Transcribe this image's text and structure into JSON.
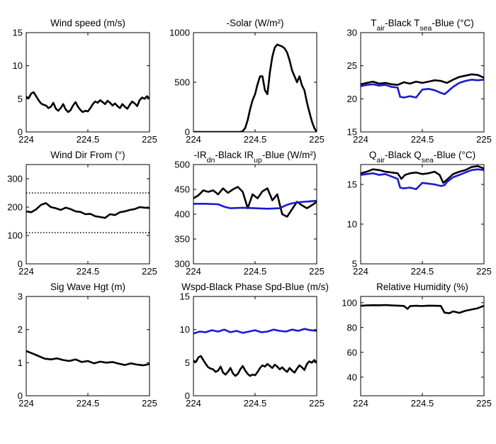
{
  "colors": {
    "black": "#000000",
    "blue": "#1a1ad0",
    "axis": "#000000"
  },
  "chart_data": [
    {
      "type": "line",
      "title": "Wind speed (m/s)",
      "xlim": [
        224,
        225
      ],
      "ylim": [
        0,
        15
      ],
      "xticks": [
        224,
        224.5,
        225
      ],
      "xtick_labels": [
        "224",
        "224.5",
        "225"
      ],
      "yticks": [
        0,
        5,
        10,
        15
      ],
      "ytick_labels": [
        "0",
        "5",
        "10",
        "15"
      ],
      "series": [
        {
          "color": "black",
          "x": [
            224,
            224.02,
            224.04,
            224.06,
            224.08,
            224.1,
            224.12,
            224.14,
            224.16,
            224.18,
            224.2,
            224.22,
            224.24,
            224.26,
            224.28,
            224.3,
            224.32,
            224.34,
            224.36,
            224.38,
            224.4,
            224.42,
            224.44,
            224.46,
            224.48,
            224.5,
            224.52,
            224.54,
            224.56,
            224.58,
            224.6,
            224.62,
            224.64,
            224.66,
            224.68,
            224.7,
            224.72,
            224.74,
            224.76,
            224.78,
            224.8,
            224.82,
            224.84,
            224.86,
            224.88,
            224.9,
            224.92,
            224.94,
            224.96,
            224.98,
            225
          ],
          "y": [
            5.3,
            5.1,
            5.8,
            6.0,
            5.4,
            4.8,
            4.3,
            4.1,
            4.0,
            3.6,
            3.8,
            4.4,
            3.5,
            3.2,
            3.6,
            4.2,
            3.4,
            3.0,
            3.3,
            4.0,
            4.5,
            3.8,
            3.3,
            3.0,
            3.2,
            3.1,
            3.6,
            4.2,
            4.6,
            4.4,
            4.8,
            4.5,
            4.2,
            4.7,
            4.4,
            4.0,
            4.3,
            3.9,
            3.6,
            4.2,
            3.8,
            3.5,
            4.1,
            4.6,
            4.3,
            3.9,
            4.8,
            5.2,
            5.0,
            5.4,
            5.0
          ]
        }
      ]
    },
    {
      "type": "line",
      "title": "-Solar (W/m²)",
      "xlim": [
        224,
        225
      ],
      "ylim": [
        0,
        1000
      ],
      "xticks": [
        224,
        224.5,
        225
      ],
      "xtick_labels": [
        "224",
        "224.5",
        "225"
      ],
      "yticks": [
        0,
        500,
        1000
      ],
      "ytick_labels": [
        "0",
        "500",
        "1000"
      ],
      "series": [
        {
          "color": "black",
          "x": [
            224,
            224.38,
            224.4,
            224.42,
            224.44,
            224.46,
            224.48,
            224.5,
            224.52,
            224.54,
            224.56,
            224.58,
            224.6,
            224.62,
            224.64,
            224.66,
            224.68,
            224.7,
            224.72,
            224.74,
            224.76,
            224.78,
            224.8,
            224.82,
            224.84,
            224.86,
            224.88,
            224.9,
            224.92,
            224.94,
            224.96,
            224.98,
            225
          ],
          "y": [
            0,
            0,
            8,
            40,
            120,
            230,
            320,
            380,
            480,
            560,
            560,
            420,
            380,
            600,
            760,
            850,
            880,
            870,
            860,
            840,
            800,
            720,
            620,
            560,
            500,
            560,
            470,
            420,
            300,
            200,
            110,
            40,
            0
          ]
        }
      ]
    },
    {
      "type": "line",
      "title": "T_air-Black T_sea-Blue (°C)",
      "xlim": [
        224,
        225
      ],
      "ylim": [
        15,
        30
      ],
      "xticks": [
        224,
        224.5,
        225
      ],
      "xtick_labels": [
        "224",
        "224.5",
        "225"
      ],
      "yticks": [
        15,
        20,
        25,
        30
      ],
      "ytick_labels": [
        "15",
        "20",
        "25",
        "30"
      ],
      "series": [
        {
          "color": "black",
          "x": [
            224,
            224.05,
            224.1,
            224.15,
            224.2,
            224.25,
            224.3,
            224.35,
            224.4,
            224.45,
            224.5,
            224.55,
            224.6,
            224.65,
            224.7,
            224.75,
            224.8,
            224.85,
            224.9,
            224.95,
            225
          ],
          "y": [
            22.2,
            22.4,
            22.6,
            22.3,
            22.4,
            22.2,
            22.1,
            22.5,
            22.3,
            22.6,
            22.4,
            22.6,
            22.8,
            22.7,
            22.4,
            22.9,
            23.3,
            23.5,
            23.7,
            23.6,
            23.2
          ]
        },
        {
          "color": "blue",
          "x": [
            224,
            224.05,
            224.1,
            224.15,
            224.2,
            224.25,
            224.3,
            224.32,
            224.35,
            224.4,
            224.45,
            224.5,
            224.55,
            224.6,
            224.65,
            224.68,
            224.7,
            224.75,
            224.8,
            224.85,
            224.9,
            224.95,
            225
          ],
          "y": [
            21.9,
            22.1,
            22.2,
            22.0,
            22.1,
            21.8,
            21.7,
            20.3,
            20.2,
            20.4,
            20.2,
            21.4,
            21.5,
            21.3,
            20.9,
            20.7,
            21.0,
            21.8,
            22.4,
            22.7,
            22.9,
            22.8,
            22.9
          ]
        }
      ]
    },
    {
      "type": "line",
      "title": "Wind Dir From (°)",
      "xlim": [
        224,
        225
      ],
      "ylim": [
        0,
        350
      ],
      "xticks": [
        224,
        224.5,
        225
      ],
      "xtick_labels": [
        "224",
        "224.5",
        "225"
      ],
      "yticks": [
        0,
        100,
        200,
        300
      ],
      "ytick_labels": [
        "0",
        "100",
        "200",
        "300"
      ],
      "reference_lines": [
        250,
        110
      ],
      "series": [
        {
          "color": "black",
          "x": [
            224,
            224.04,
            224.08,
            224.12,
            224.16,
            224.2,
            224.24,
            224.28,
            224.32,
            224.36,
            224.4,
            224.44,
            224.48,
            224.52,
            224.56,
            224.6,
            224.64,
            224.68,
            224.72,
            224.76,
            224.8,
            224.84,
            224.88,
            224.92,
            224.96,
            225
          ],
          "y": [
            185,
            182,
            192,
            208,
            214,
            200,
            196,
            190,
            198,
            193,
            185,
            183,
            175,
            176,
            168,
            165,
            162,
            175,
            172,
            182,
            185,
            190,
            193,
            200,
            198,
            197
          ]
        }
      ]
    },
    {
      "type": "line",
      "title": "-IR_dn-Black IR_up-Blue (W/m²)",
      "xlim": [
        224,
        225
      ],
      "ylim": [
        300,
        500
      ],
      "xticks": [
        224,
        224.5,
        225
      ],
      "xtick_labels": [
        "224",
        "224.5",
        "225"
      ],
      "yticks": [
        300,
        350,
        400,
        450,
        500
      ],
      "ytick_labels": [
        "300",
        "350",
        "400",
        "450",
        "500"
      ],
      "series": [
        {
          "color": "black",
          "x": [
            224,
            224.04,
            224.08,
            224.12,
            224.16,
            224.2,
            224.24,
            224.28,
            224.32,
            224.36,
            224.4,
            224.44,
            224.48,
            224.52,
            224.56,
            224.6,
            224.64,
            224.68,
            224.72,
            224.76,
            224.8,
            224.84,
            224.88,
            224.92,
            224.96,
            225
          ],
          "y": [
            432,
            438,
            448,
            445,
            448,
            440,
            452,
            443,
            450,
            455,
            445,
            412,
            440,
            432,
            446,
            452,
            428,
            440,
            400,
            395,
            410,
            425,
            418,
            412,
            418,
            425
          ]
        },
        {
          "color": "blue",
          "x": [
            224,
            224.1,
            224.2,
            224.25,
            224.3,
            224.4,
            224.5,
            224.6,
            224.7,
            224.75,
            224.8,
            224.85,
            224.9,
            224.95,
            225
          ],
          "y": [
            421,
            421,
            420,
            415,
            412,
            413,
            412,
            411,
            412,
            418,
            422,
            424,
            425,
            426,
            427
          ]
        }
      ]
    },
    {
      "type": "line",
      "title": "Q_air-Black Q_sea-Blue (°C)",
      "xlim": [
        224,
        225
      ],
      "ylim": [
        5,
        17.5
      ],
      "xticks": [
        224,
        224.5,
        225
      ],
      "xtick_labels": [
        "224",
        "224.5",
        "225"
      ],
      "yticks": [
        5,
        10,
        15
      ],
      "ytick_labels": [
        "5",
        "10",
        "15"
      ],
      "series": [
        {
          "color": "black",
          "x": [
            224,
            224.05,
            224.1,
            224.15,
            224.2,
            224.25,
            224.3,
            224.33,
            224.36,
            224.4,
            224.45,
            224.5,
            224.55,
            224.6,
            224.64,
            224.67,
            224.7,
            224.75,
            224.8,
            224.85,
            224.9,
            224.95,
            225
          ],
          "y": [
            16.4,
            16.6,
            16.9,
            16.8,
            16.6,
            16.5,
            16.4,
            15.7,
            16.2,
            16.4,
            16.5,
            16.3,
            16.4,
            16.6,
            16.2,
            15.2,
            15.6,
            16.3,
            16.6,
            16.8,
            17.2,
            17.3,
            17.0
          ]
        },
        {
          "color": "blue",
          "x": [
            224,
            224.05,
            224.1,
            224.15,
            224.2,
            224.25,
            224.3,
            224.32,
            224.35,
            224.4,
            224.45,
            224.5,
            224.55,
            224.6,
            224.65,
            224.68,
            224.7,
            224.75,
            224.8,
            224.85,
            224.9,
            224.95,
            225
          ],
          "y": [
            16.2,
            16.3,
            16.4,
            16.2,
            16.3,
            16.0,
            15.7,
            14.6,
            14.5,
            14.6,
            14.4,
            15.2,
            15.1,
            15.0,
            14.8,
            14.9,
            15.3,
            15.9,
            16.2,
            16.5,
            16.8,
            16.9,
            16.8
          ]
        }
      ]
    },
    {
      "type": "line",
      "title": "Sig Wave Hgt (m)",
      "xlim": [
        224,
        225
      ],
      "ylim": [
        0,
        3
      ],
      "xticks": [
        224,
        224.5,
        225
      ],
      "xtick_labels": [
        "224",
        "224.5",
        "225"
      ],
      "yticks": [
        0,
        1,
        2,
        3
      ],
      "ytick_labels": [
        "0",
        "1",
        "2",
        "3"
      ],
      "series": [
        {
          "color": "black",
          "x": [
            224,
            224.05,
            224.1,
            224.15,
            224.2,
            224.25,
            224.3,
            224.35,
            224.4,
            224.45,
            224.5,
            224.55,
            224.6,
            224.65,
            224.7,
            224.75,
            224.8,
            224.85,
            224.9,
            224.95,
            225
          ],
          "y": [
            1.35,
            1.28,
            1.2,
            1.12,
            1.1,
            1.13,
            1.08,
            1.05,
            1.1,
            1.02,
            1.05,
            0.98,
            1.03,
            1.0,
            1.02,
            0.97,
            0.93,
            0.98,
            0.94,
            0.92,
            0.96
          ]
        }
      ]
    },
    {
      "type": "line",
      "title": "Wspd-Black Phase Spd-Blue (m/s)",
      "xlim": [
        224,
        225
      ],
      "ylim": [
        0,
        15
      ],
      "xticks": [
        224,
        224.5,
        225
      ],
      "xtick_labels": [
        "224",
        "224.5",
        "225"
      ],
      "yticks": [
        0,
        5,
        10,
        15
      ],
      "ytick_labels": [
        "0",
        "5",
        "10",
        "15"
      ],
      "series": [
        {
          "color": "blue",
          "x": [
            224,
            224.05,
            224.1,
            224.15,
            224.2,
            224.25,
            224.3,
            224.35,
            224.4,
            224.45,
            224.5,
            224.55,
            224.6,
            224.65,
            224.7,
            224.75,
            224.8,
            224.85,
            224.9,
            224.95,
            225
          ],
          "y": [
            9.4,
            9.7,
            9.6,
            9.9,
            9.7,
            10.0,
            9.6,
            9.8,
            9.5,
            9.7,
            9.9,
            9.6,
            9.7,
            10.0,
            9.8,
            9.7,
            10.0,
            9.8,
            10.1,
            9.9,
            9.8
          ]
        },
        {
          "color": "black",
          "x": [
            224,
            224.02,
            224.04,
            224.06,
            224.08,
            224.1,
            224.12,
            224.14,
            224.16,
            224.18,
            224.2,
            224.22,
            224.24,
            224.26,
            224.28,
            224.3,
            224.32,
            224.34,
            224.36,
            224.38,
            224.4,
            224.42,
            224.44,
            224.46,
            224.48,
            224.5,
            224.52,
            224.54,
            224.56,
            224.58,
            224.6,
            224.62,
            224.64,
            224.66,
            224.68,
            224.7,
            224.72,
            224.74,
            224.76,
            224.78,
            224.8,
            224.82,
            224.84,
            224.86,
            224.88,
            224.9,
            224.92,
            224.94,
            224.96,
            224.98,
            225
          ],
          "y": [
            5.3,
            5.1,
            5.8,
            6.0,
            5.4,
            4.8,
            4.3,
            4.1,
            4.0,
            3.6,
            3.8,
            4.4,
            3.5,
            3.2,
            3.6,
            4.2,
            3.4,
            3.0,
            3.3,
            4.0,
            4.5,
            3.8,
            3.3,
            3.0,
            3.2,
            3.1,
            3.6,
            4.2,
            4.6,
            4.4,
            4.8,
            4.5,
            4.2,
            4.7,
            4.4,
            4.0,
            4.3,
            3.9,
            3.6,
            4.2,
            3.8,
            3.5,
            4.1,
            4.6,
            4.3,
            3.9,
            4.8,
            5.2,
            5.0,
            5.4,
            5.0
          ]
        }
      ]
    },
    {
      "type": "line",
      "title": "Relative Humidity (%)",
      "xlim": [
        224,
        225
      ],
      "ylim": [
        25,
        105
      ],
      "xticks": [
        224,
        224.5,
        225
      ],
      "xtick_labels": [
        "224",
        "224.5",
        "225"
      ],
      "yticks": [
        40,
        60,
        80,
        100
      ],
      "ytick_labels": [
        "40",
        "60",
        "80",
        "100"
      ],
      "series": [
        {
          "color": "black",
          "x": [
            224,
            224.05,
            224.1,
            224.15,
            224.2,
            224.25,
            224.3,
            224.35,
            224.38,
            224.4,
            224.45,
            224.5,
            224.55,
            224.6,
            224.65,
            224.68,
            224.72,
            224.75,
            224.8,
            224.85,
            224.9,
            224.95,
            225
          ],
          "y": [
            97.5,
            97.8,
            98.0,
            97.9,
            98.1,
            97.8,
            97.6,
            97.4,
            95.0,
            97.2,
            97.5,
            97.3,
            97.6,
            97.5,
            97.4,
            92.0,
            91.5,
            93.0,
            91.8,
            93.5,
            94.5,
            95.5,
            97.5
          ]
        }
      ]
    }
  ]
}
